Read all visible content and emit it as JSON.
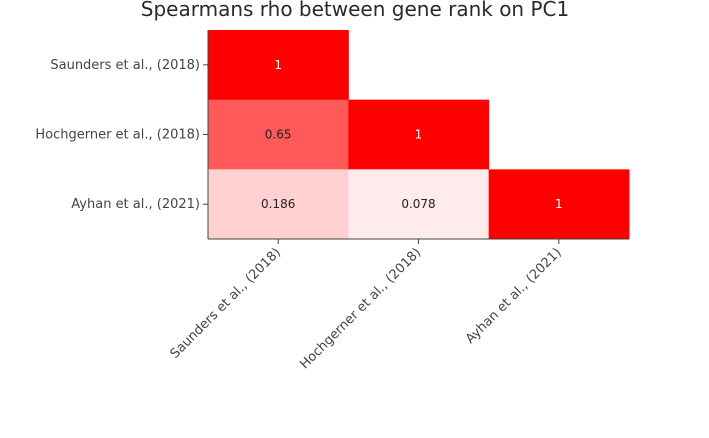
{
  "chart_data": {
    "type": "heatmap",
    "title": "Spearmans rho between gene rank on PC1",
    "xlabel": "",
    "ylabel": "",
    "x_categories": [
      "Saunders et al., (2018)",
      "Hochgerner et al., (2018)",
      "Ayhan et al., (2021)"
    ],
    "y_categories": [
      "Saunders et al., (2018)",
      "Hochgerner et al., (2018)",
      "Ayhan et al., (2021)"
    ],
    "cells": [
      {
        "x": "Saunders et al., (2018)",
        "y": "Saunders et al., (2018)",
        "value": 1,
        "label": "1"
      },
      {
        "x": "Saunders et al., (2018)",
        "y": "Hochgerner et al., (2018)",
        "value": 0.65,
        "label": "0.65"
      },
      {
        "x": "Saunders et al., (2018)",
        "y": "Ayhan et al., (2021)",
        "value": 0.186,
        "label": "0.186"
      },
      {
        "x": "Hochgerner et al., (2018)",
        "y": "Hochgerner et al., (2018)",
        "value": 1,
        "label": "1"
      },
      {
        "x": "Hochgerner et al., (2018)",
        "y": "Ayhan et al., (2021)",
        "value": 0.078,
        "label": "0.078"
      },
      {
        "x": "Ayhan et al., (2021)",
        "y": "Ayhan et al., (2021)",
        "value": 1,
        "label": "1"
      }
    ],
    "color_scale": {
      "low": "#ffffff",
      "high": "#ff0000"
    },
    "x_tick_rotation": "-45 degrees",
    "legend": "none",
    "grid": false
  }
}
